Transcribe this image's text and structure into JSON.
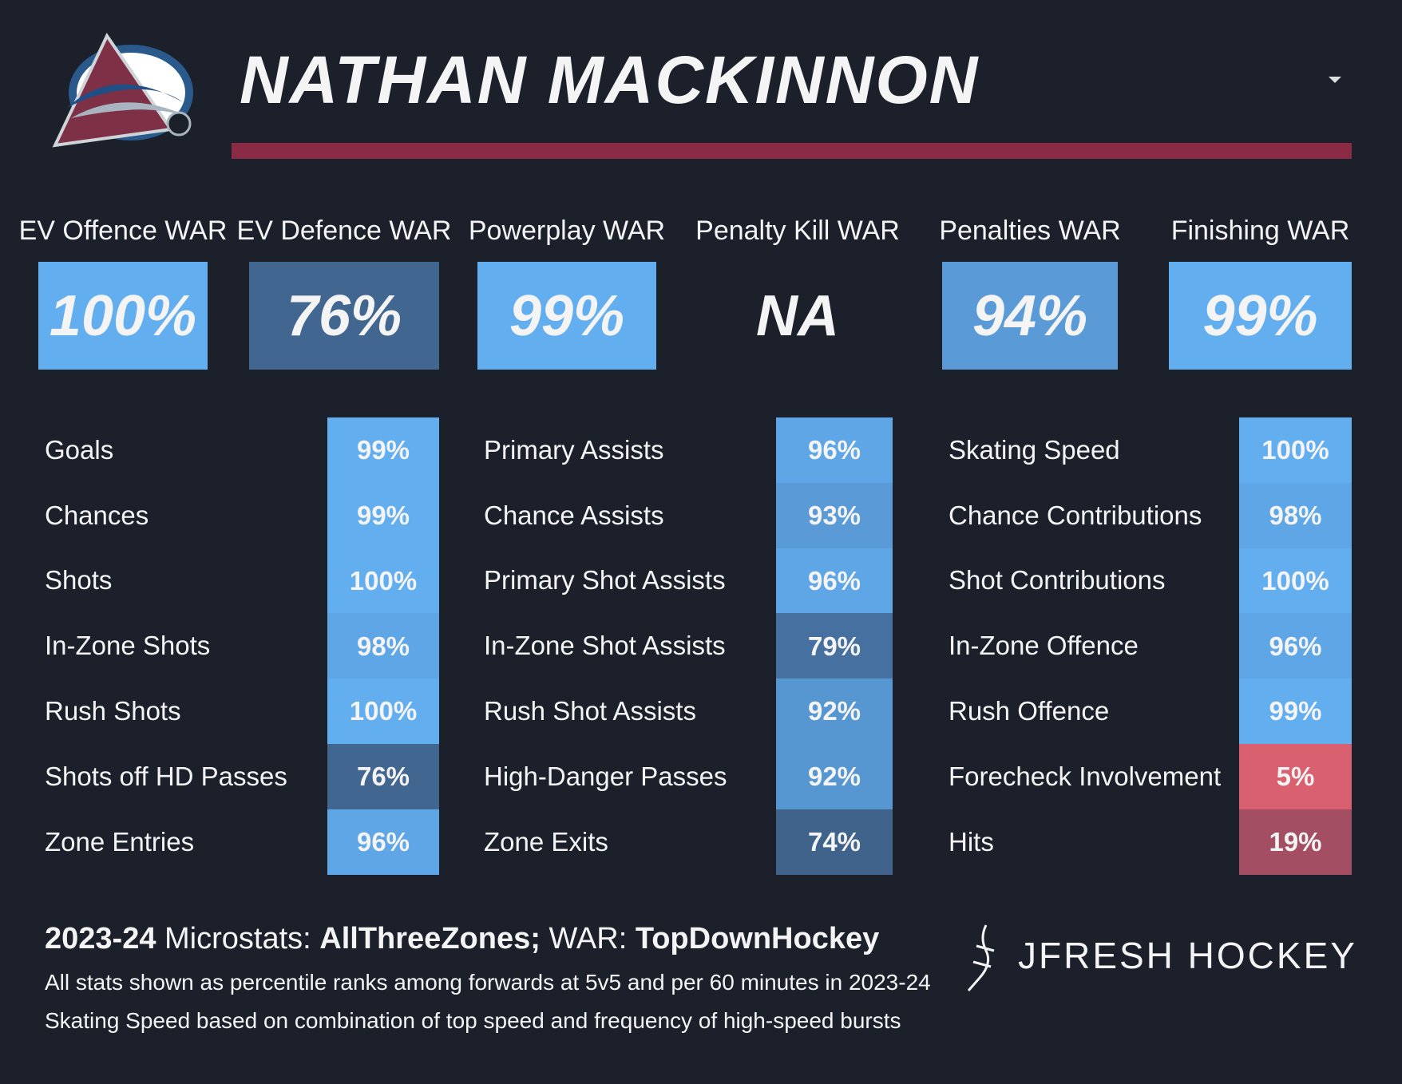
{
  "header": {
    "player_name": "NATHAN MACKINNON"
  },
  "war": [
    {
      "label": "EV Offence WAR",
      "value": "100%",
      "color": "#63aeef"
    },
    {
      "label": "EV Defence WAR",
      "value": "76%",
      "color": "#41668f"
    },
    {
      "label": "Powerplay WAR",
      "value": "99%",
      "color": "#63aeef"
    },
    {
      "label": "Penalty Kill WAR",
      "value": "NA",
      "color": "#1b202b"
    },
    {
      "label": "Penalties WAR",
      "value": "94%",
      "color": "#5a9ad6"
    },
    {
      "label": "Finishing WAR",
      "value": "99%",
      "color": "#63aeef"
    }
  ],
  "stat_columns": [
    [
      {
        "label": "Goals",
        "value": "99%",
        "color": "#63aeef"
      },
      {
        "label": "Chances",
        "value": "99%",
        "color": "#63aeef"
      },
      {
        "label": "Shots",
        "value": "100%",
        "color": "#63aeef"
      },
      {
        "label": "In-Zone Shots",
        "value": "98%",
        "color": "#5fa6e6"
      },
      {
        "label": "Rush Shots",
        "value": "100%",
        "color": "#63aeef"
      },
      {
        "label": "Shots off HD Passes",
        "value": "76%",
        "color": "#41668f"
      },
      {
        "label": "Zone Entries",
        "value": "96%",
        "color": "#5fa6e6"
      }
    ],
    [
      {
        "label": "Primary Assists",
        "value": "96%",
        "color": "#5fa6e6"
      },
      {
        "label": "Chance Assists",
        "value": "93%",
        "color": "#5a9ad6"
      },
      {
        "label": "Primary Shot Assists",
        "value": "96%",
        "color": "#5fa6e6"
      },
      {
        "label": "In-Zone Shot Assists",
        "value": "79%",
        "color": "#4670a0"
      },
      {
        "label": "Rush Shot Assists",
        "value": "92%",
        "color": "#5797d1"
      },
      {
        "label": "High-Danger Passes",
        "value": "92%",
        "color": "#5797d1"
      },
      {
        "label": "Zone Exits",
        "value": "74%",
        "color": "#3f638b"
      }
    ],
    [
      {
        "label": "Skating Speed",
        "value": "100%",
        "color": "#63aeef"
      },
      {
        "label": "Chance Contributions",
        "value": "98%",
        "color": "#5fa6e6"
      },
      {
        "label": "Shot Contributions",
        "value": "100%",
        "color": "#63aeef"
      },
      {
        "label": "In-Zone Offence",
        "value": "96%",
        "color": "#5fa6e6"
      },
      {
        "label": "Rush Offence",
        "value": "99%",
        "color": "#63aeef"
      },
      {
        "label": "Forecheck Involvement",
        "value": "5%",
        "color": "#d8606f"
      },
      {
        "label": "Hits",
        "value": "19%",
        "color": "#a34e63"
      }
    ]
  ],
  "footer": {
    "source": [
      "2023-24",
      " Microstats: ",
      "AllThreeZones;",
      " WAR: ",
      "TopDownHockey"
    ],
    "note_1": "All stats shown as percentile ranks among forwards at 5v5 and per 60 minutes in 2023-24",
    "note_2": "Skating Speed based on combination of top speed and frequency of high-speed bursts",
    "brand": "JFRESH HOCKEY"
  }
}
